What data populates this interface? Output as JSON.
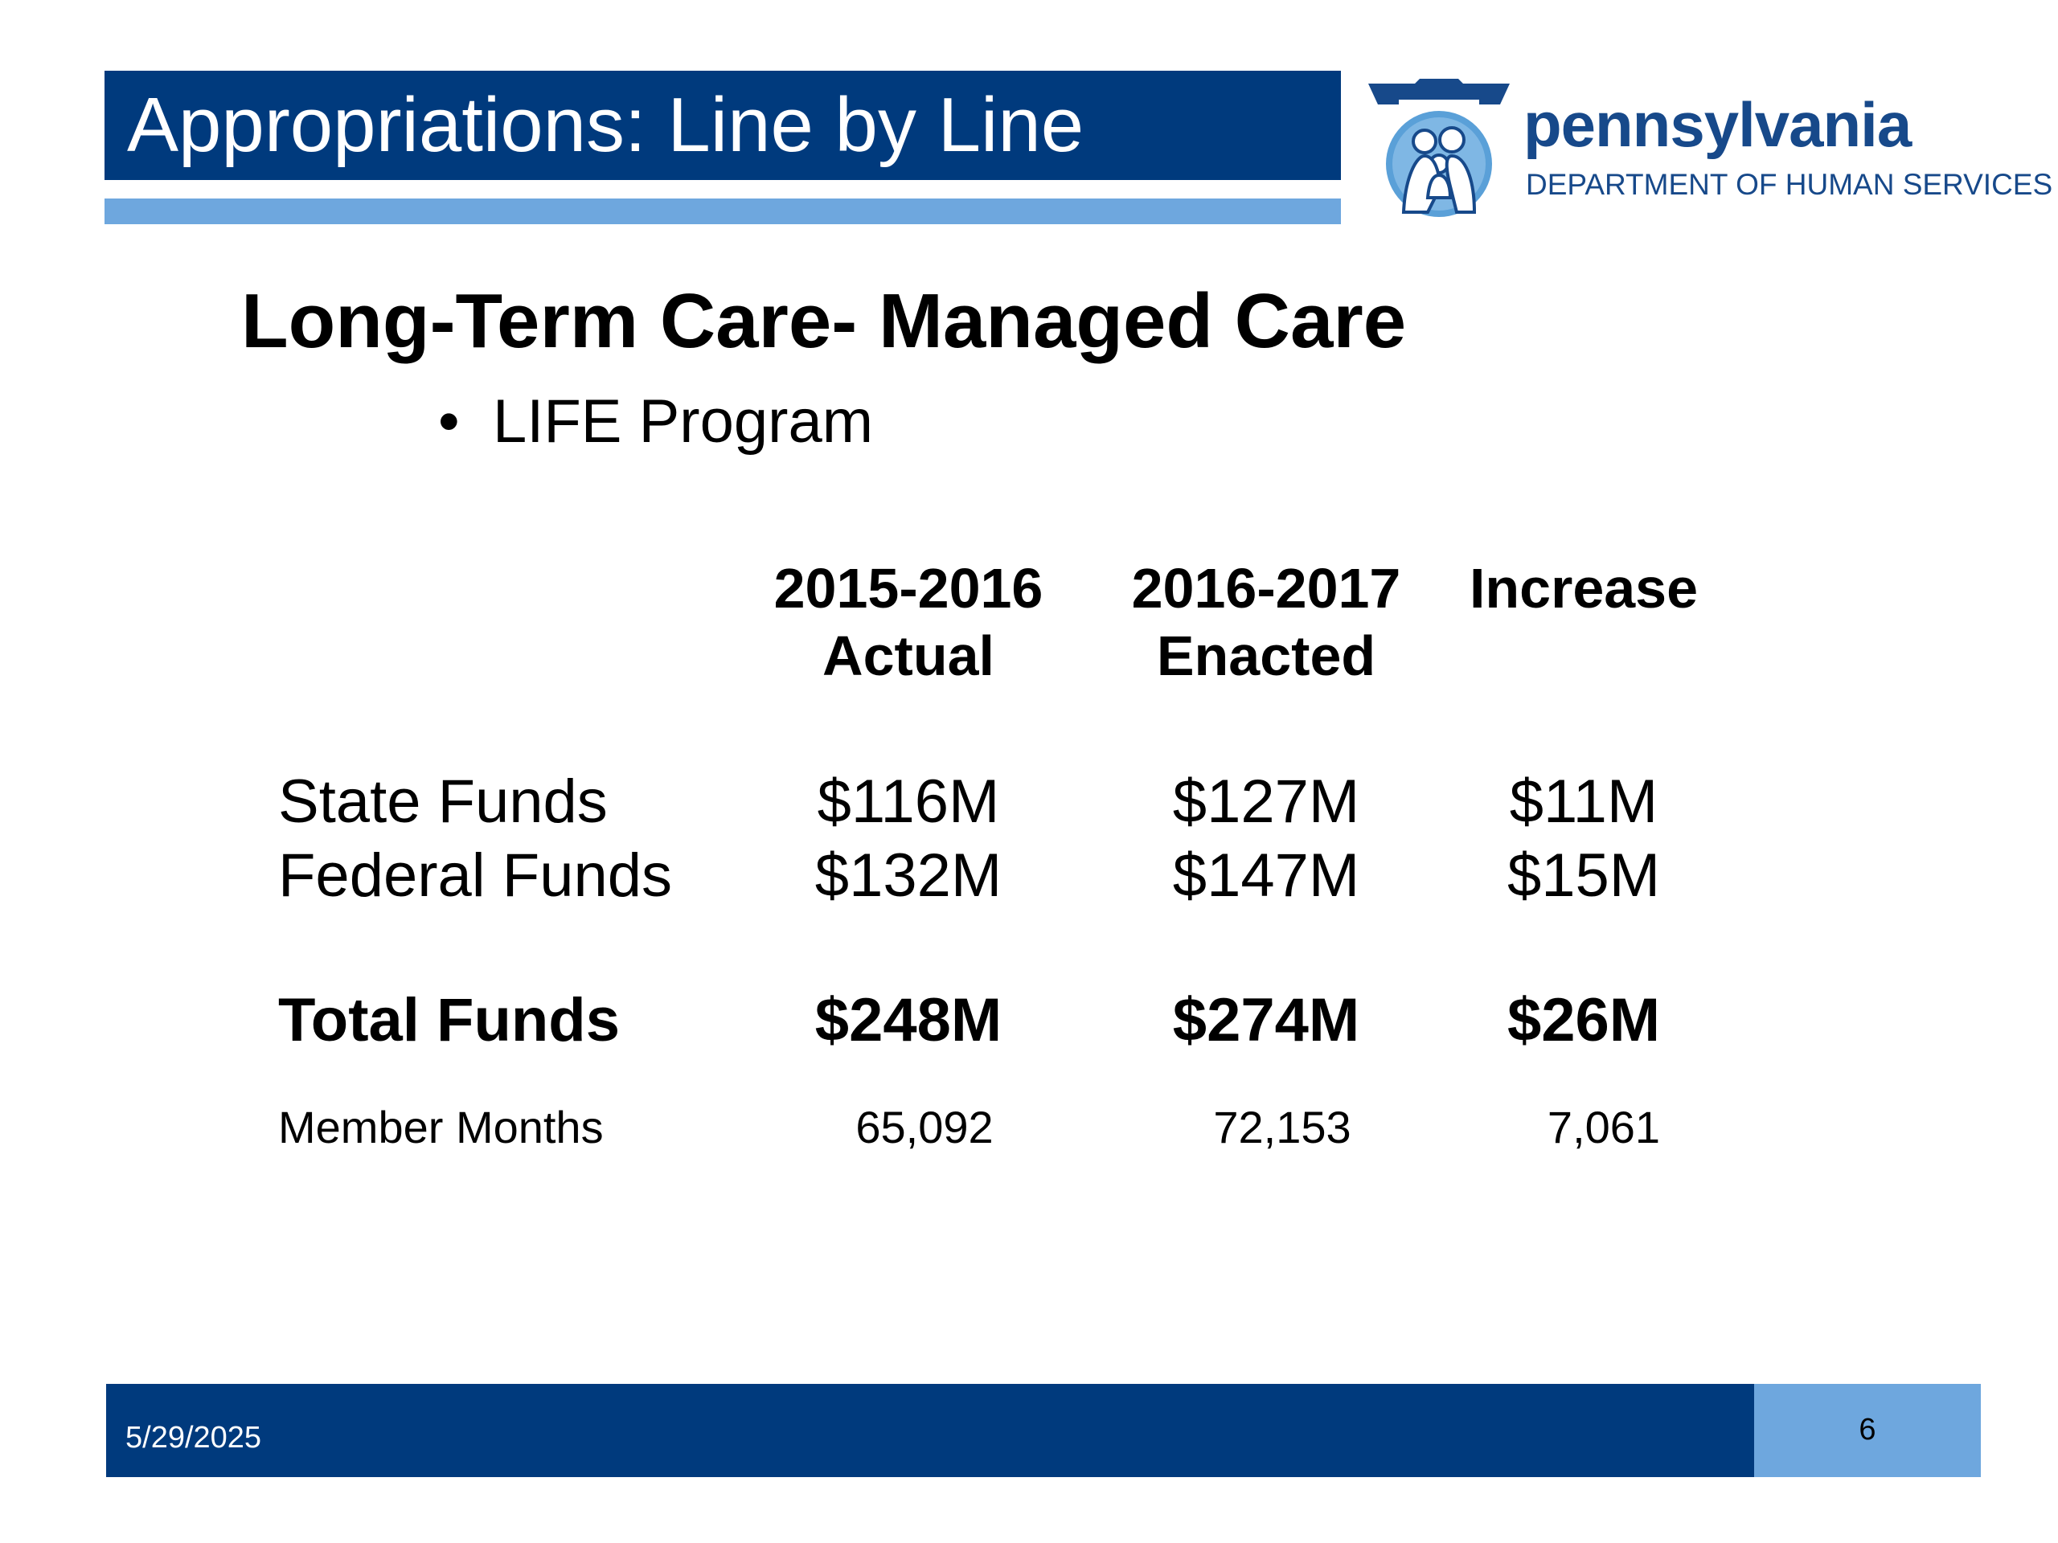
{
  "header": {
    "title": "Appropriations: Line by Line"
  },
  "logo": {
    "name": "pennsylvania",
    "subtitle": "DEPARTMENT OF HUMAN SERVICES",
    "colors": {
      "dark": "#17498a",
      "light": "#5aa0d8"
    }
  },
  "section": {
    "title": "Long-Term Care- Managed Care",
    "bullet": "LIFE Program",
    "bullet_marker": "•"
  },
  "table": {
    "columns": [
      {
        "line1": "2015-2016",
        "line2": "Actual"
      },
      {
        "line1": "2016-2017",
        "line2": "Enacted"
      },
      {
        "line1": "Increase",
        "line2": ""
      }
    ],
    "rows": [
      {
        "label": "State Funds",
        "values": [
          "$116M",
          "$127M",
          "$11M"
        ]
      },
      {
        "label": "Federal Funds",
        "values": [
          "$132M",
          "$147M",
          "$15M"
        ]
      },
      {
        "label": "Total Funds",
        "values": [
          "$248M",
          "$274M",
          "$26M"
        ]
      },
      {
        "label": "Member Months",
        "values": [
          "65,092",
          "72,153",
          "7,061"
        ]
      }
    ]
  },
  "footer": {
    "date": "5/29/2025",
    "page": "6"
  },
  "colors": {
    "primary": "#003a7d",
    "accent": "#6ea7de"
  }
}
